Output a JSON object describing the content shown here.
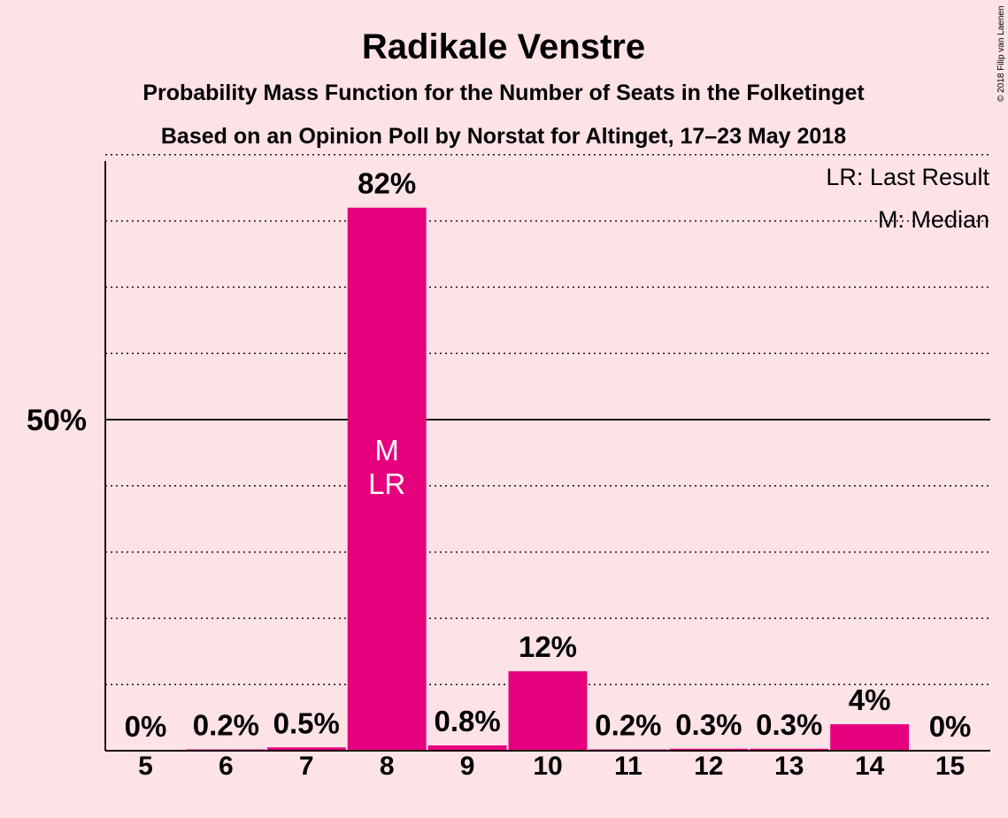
{
  "chart_data": {
    "type": "bar",
    "title": "Radikale Venstre",
    "subtitle": "Probability Mass Function for the Number of Seats in the Folketinget",
    "subtitle2": "Based on an Opinion Poll by Norstat for Altinget, 17–23 May 2018",
    "copyright": "© 2018 Filip van Laenen",
    "legend": [
      "LR: Last Result",
      "M: Median"
    ],
    "legend_position": "top-right",
    "categories": [
      "5",
      "6",
      "7",
      "8",
      "9",
      "10",
      "11",
      "12",
      "13",
      "14",
      "15"
    ],
    "values": [
      0,
      0.2,
      0.5,
      82,
      0.8,
      12,
      0.2,
      0.3,
      0.3,
      4,
      0
    ],
    "labels": [
      "0%",
      "0.2%",
      "0.5%",
      "82%",
      "0.8%",
      "12%",
      "0.2%",
      "0.3%",
      "0.3%",
      "4%",
      "0%"
    ],
    "median_seat": "8",
    "last_result_seat": "8",
    "median_marker": "M",
    "last_result_marker": "LR",
    "ylim": [
      0,
      90
    ],
    "y_ticks": [
      {
        "value": 50,
        "label": "50%"
      }
    ],
    "grid_dotted_every": 10,
    "bar_color": "#e6007e",
    "background_color": "#fde2e6"
  }
}
